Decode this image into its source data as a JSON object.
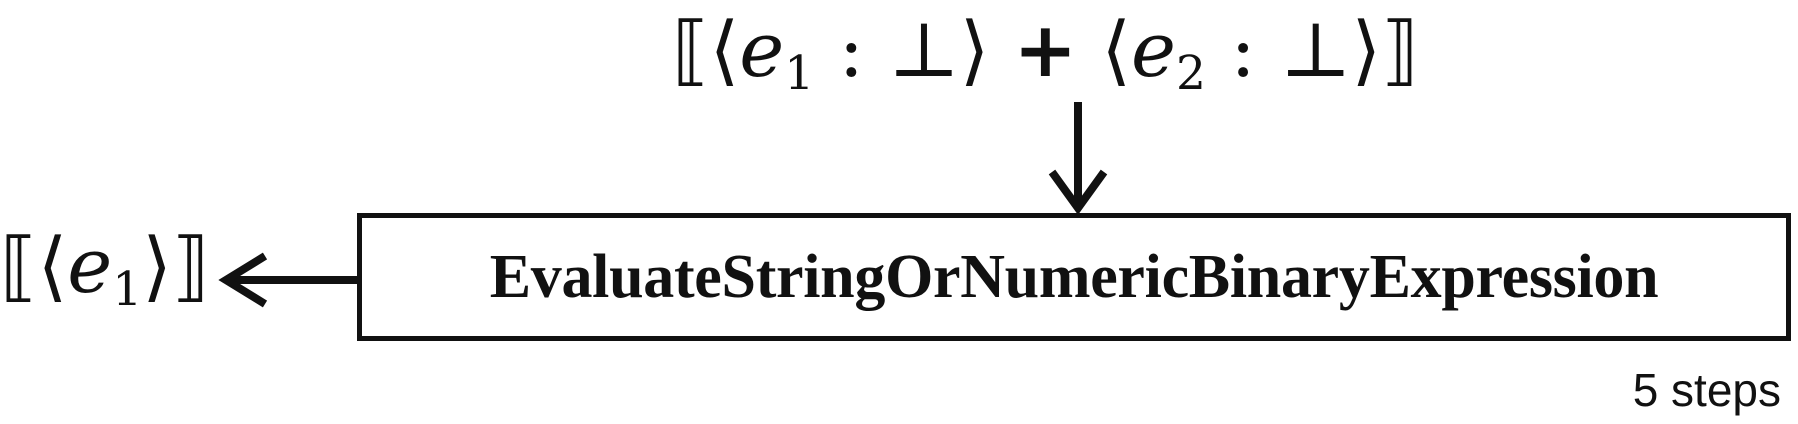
{
  "diagram": {
    "input": {
      "open_bracket": "⟦",
      "close_bracket": "⟧",
      "operator": "+",
      "left": {
        "var": "e",
        "sub": "1",
        "sep": ":",
        "val": "⊥"
      },
      "right": {
        "var": "e",
        "sub": "2",
        "sep": ":",
        "val": "⊥"
      }
    },
    "function_name": "EvaluateStringOrNumericBinaryExpression",
    "output": {
      "open_bracket": "⟦",
      "close_bracket": "⟧",
      "var": "e",
      "sub": "1"
    },
    "step_count": "5 steps"
  }
}
